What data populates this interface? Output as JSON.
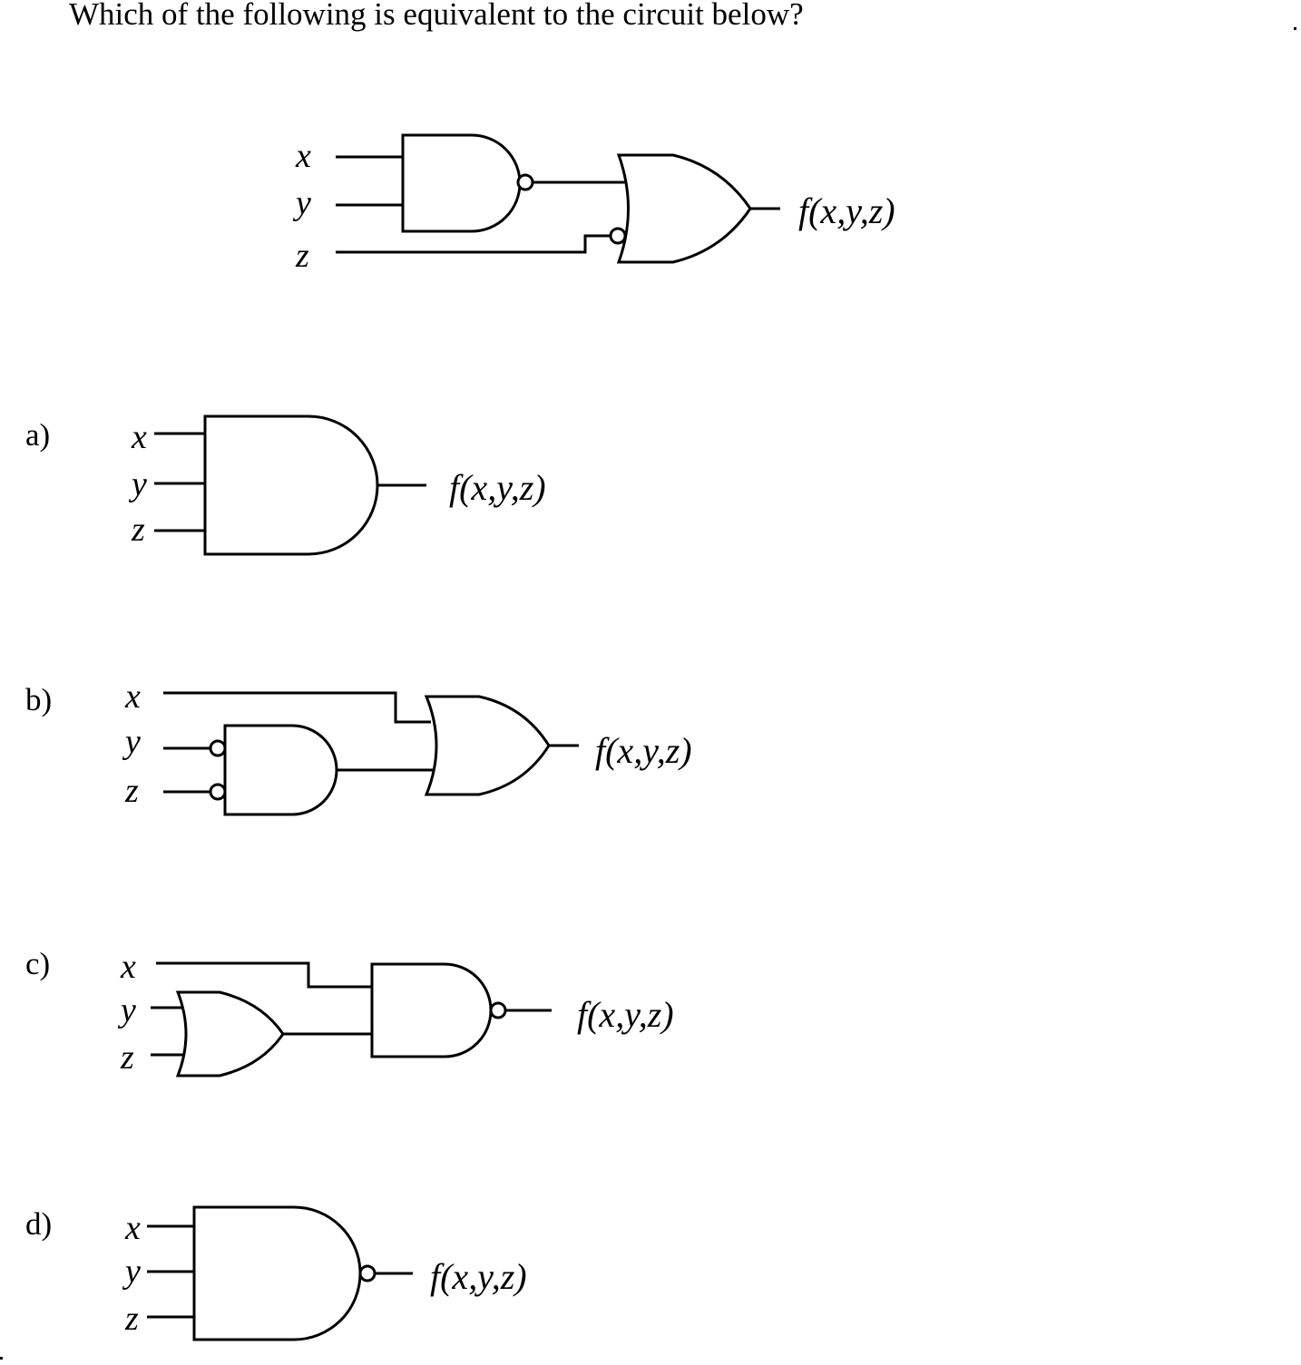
{
  "question": "Which of the following is equivalent to the circuit below?",
  "inputs": {
    "x": "x",
    "y": "y",
    "z": "z"
  },
  "output_label": "f(x,y,z)",
  "options": [
    {
      "letter": "a)",
      "description": "three-input AND gate"
    },
    {
      "letter": "b)",
      "description": "x OR (NOT y AND NOT z)"
    },
    {
      "letter": "c)",
      "description": "NAND of x and (y OR z)"
    },
    {
      "letter": "d)",
      "description": "three-input NAND gate"
    }
  ],
  "main_circuit": "NAND(x,y) feeding an OR gate together with NOT z"
}
